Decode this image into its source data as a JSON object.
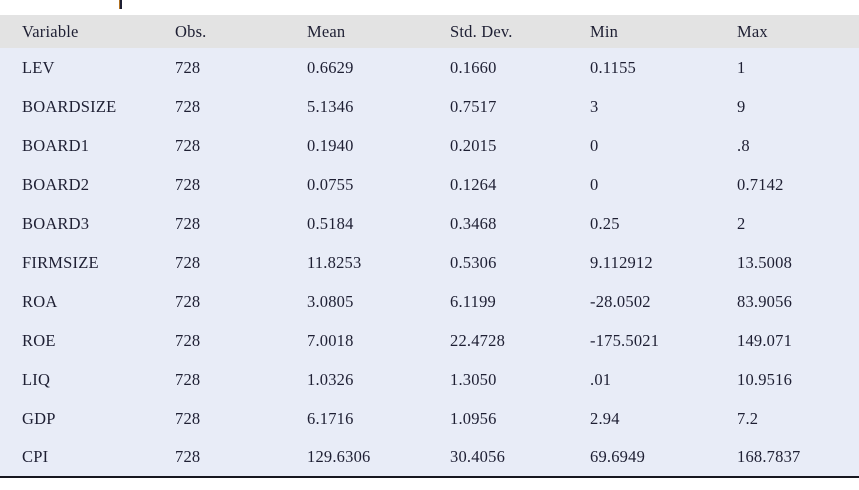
{
  "colors": {
    "page_bg": "#ffffff",
    "header_bg": "#e3e3e3",
    "row_bg": "#e8ecf7",
    "text": "#1e1f33",
    "border": "#17171f"
  },
  "table": {
    "columns": [
      "Variable",
      "Obs.",
      "Mean",
      "Std. Dev.",
      "Min",
      "Max"
    ],
    "rows": [
      [
        "LEV",
        "728",
        "0.6629",
        "0.1660",
        "0.1155",
        "1"
      ],
      [
        "BOARDSIZE",
        "728",
        "5.1346",
        "0.7517",
        "3",
        "9"
      ],
      [
        "BOARD1",
        "728",
        "0.1940",
        "0.2015",
        "0",
        ".8"
      ],
      [
        "BOARD2",
        "728",
        "0.0755",
        "0.1264",
        "0",
        "0.7142"
      ],
      [
        "BOARD3",
        "728",
        "0.5184",
        "0.3468",
        "0.25",
        "2"
      ],
      [
        "FIRMSIZE",
        "728",
        "11.8253",
        "0.5306",
        "9.112912",
        "13.5008"
      ],
      [
        "ROA",
        "728",
        "3.0805",
        "6.1199",
        "-28.0502",
        "83.9056"
      ],
      [
        "ROE",
        "728",
        "7.0018",
        "22.4728",
        "-175.5021",
        "149.071"
      ],
      [
        "LIQ",
        "728",
        "1.0326",
        "1.3050",
        ".01",
        "10.9516"
      ],
      [
        "GDP",
        "728",
        "6.1716",
        "1.0956",
        "2.94",
        "7.2"
      ],
      [
        "CPI",
        "728",
        "129.6306",
        "30.4056",
        "69.6949",
        "168.7837"
      ]
    ]
  }
}
